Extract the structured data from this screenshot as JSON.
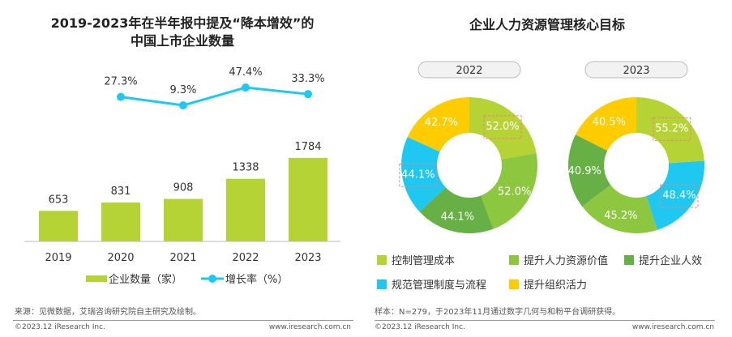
{
  "chart_data": [
    {
      "type": "bar+line",
      "title_lines": [
        "2019-2023年在半年报中提及“降本增效”的",
        "中国上市企业数量"
      ],
      "categories": [
        "2019",
        "2020",
        "2021",
        "2022",
        "2023"
      ],
      "series": [
        {
          "name": "企业数量（家）",
          "type": "bar",
          "values": [
            653,
            831,
            908,
            1338,
            1784
          ],
          "color": "#b5d334"
        },
        {
          "name": "增长率（%）",
          "type": "line",
          "values": [
            null,
            27.3,
            9.3,
            47.4,
            33.3
          ],
          "color": "#1ec8f0"
        }
      ],
      "legend": "bottom"
    },
    {
      "type": "donut",
      "title": "企业人力资源管理核心目标",
      "legend": [
        "控制管理成本",
        "提升人力资源价值",
        "提升企业人效",
        "规范管理制度与流程",
        "提升组织活力"
      ],
      "colors": [
        "#b5d334",
        "#8dc63f",
        "#66b045",
        "#1ec8f0",
        "#ffcc00"
      ],
      "charts": [
        {
          "label": "2022",
          "slices": [
            {
              "cat": 0,
              "value": 52.0
            },
            {
              "cat": 1,
              "value": 52.0
            },
            {
              "cat": 2,
              "value": 44.1
            },
            {
              "cat": 3,
              "value": 44.1
            },
            {
              "cat": 4,
              "value": 42.7
            }
          ],
          "highlighted": [
            0,
            3
          ]
        },
        {
          "label": "2023",
          "slices": [
            {
              "cat": 0,
              "value": 55.2
            },
            {
              "cat": 3,
              "value": 48.4
            },
            {
              "cat": 1,
              "value": 45.2
            },
            {
              "cat": 2,
              "value": 40.9
            },
            {
              "cat": 4,
              "value": 40.5
            }
          ],
          "highlighted": [
            0,
            1
          ]
        }
      ]
    }
  ],
  "footer": {
    "left_source": "来源：见微数据，艾瑞咨询研究院自主研究及绘制。",
    "right_source": "样本：N=279，于2023年11月通过数字几何与和粉平台调研获得。",
    "copyright": "©2023.12 iResearch Inc.",
    "url": "www.iresearch.com.cn"
  }
}
